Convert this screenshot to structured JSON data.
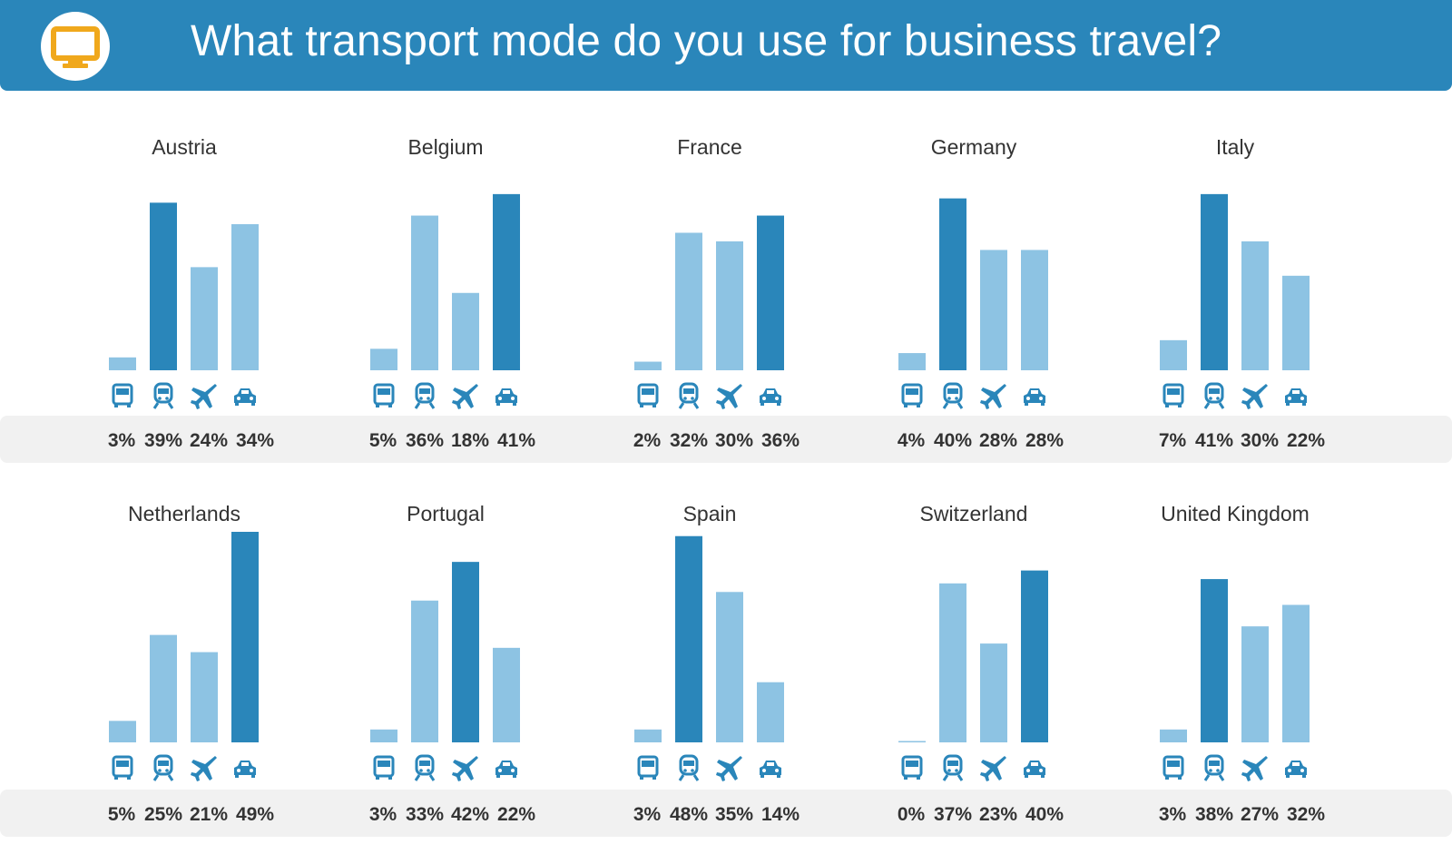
{
  "header": {
    "title": "What transport mode do you use for business travel?",
    "icon": "computer-monitor-icon",
    "bg_color": "#2a86ba",
    "icon_color": "#f0a81c"
  },
  "colors": {
    "bar_light": "#8dc3e3",
    "bar_dark": "#2a86ba",
    "icon": "#2a86ba",
    "band": "#f1f1f1"
  },
  "chart_data": {
    "type": "bar",
    "title": "What transport mode do you use for business travel?",
    "unit": "%",
    "categories": [
      "Bus",
      "Train",
      "Plane",
      "Car"
    ],
    "category_icons": [
      "bus-icon",
      "train-icon",
      "plane-icon",
      "car-icon"
    ],
    "ylim": [
      0,
      49
    ],
    "panels": [
      {
        "country": "Austria",
        "values": [
          3,
          39,
          24,
          34
        ],
        "labels": [
          "3%",
          "39%",
          "24%",
          "34%"
        ]
      },
      {
        "country": "Belgium",
        "values": [
          5,
          36,
          18,
          41
        ],
        "labels": [
          "5%",
          "36%",
          "18%",
          "41%"
        ]
      },
      {
        "country": "France",
        "values": [
          2,
          32,
          30,
          36
        ],
        "labels": [
          "2%",
          "32%",
          "30%",
          "36%"
        ]
      },
      {
        "country": "Germany",
        "values": [
          4,
          40,
          28,
          28
        ],
        "labels": [
          "4%",
          "40%",
          "28%",
          "28%"
        ]
      },
      {
        "country": "Italy",
        "values": [
          7,
          41,
          30,
          22
        ],
        "labels": [
          "7%",
          "41%",
          "30%",
          "22%"
        ]
      },
      {
        "country": "Netherlands",
        "values": [
          5,
          25,
          21,
          49
        ],
        "labels": [
          "5%",
          "25%",
          "21%",
          "49%"
        ]
      },
      {
        "country": "Portugal",
        "values": [
          3,
          33,
          42,
          22
        ],
        "labels": [
          "3%",
          "33%",
          "42%",
          "22%"
        ]
      },
      {
        "country": "Spain",
        "values": [
          3,
          48,
          35,
          14
        ],
        "labels": [
          "3%",
          "48%",
          "35%",
          "14%"
        ]
      },
      {
        "country": "Switzerland",
        "values": [
          0,
          37,
          23,
          40
        ],
        "labels": [
          "0%",
          "37%",
          "23%",
          "40%"
        ]
      },
      {
        "country": "United Kingdom",
        "values": [
          3,
          38,
          27,
          32
        ],
        "labels": [
          "3%",
          "38%",
          "27%",
          "32%"
        ]
      }
    ]
  }
}
